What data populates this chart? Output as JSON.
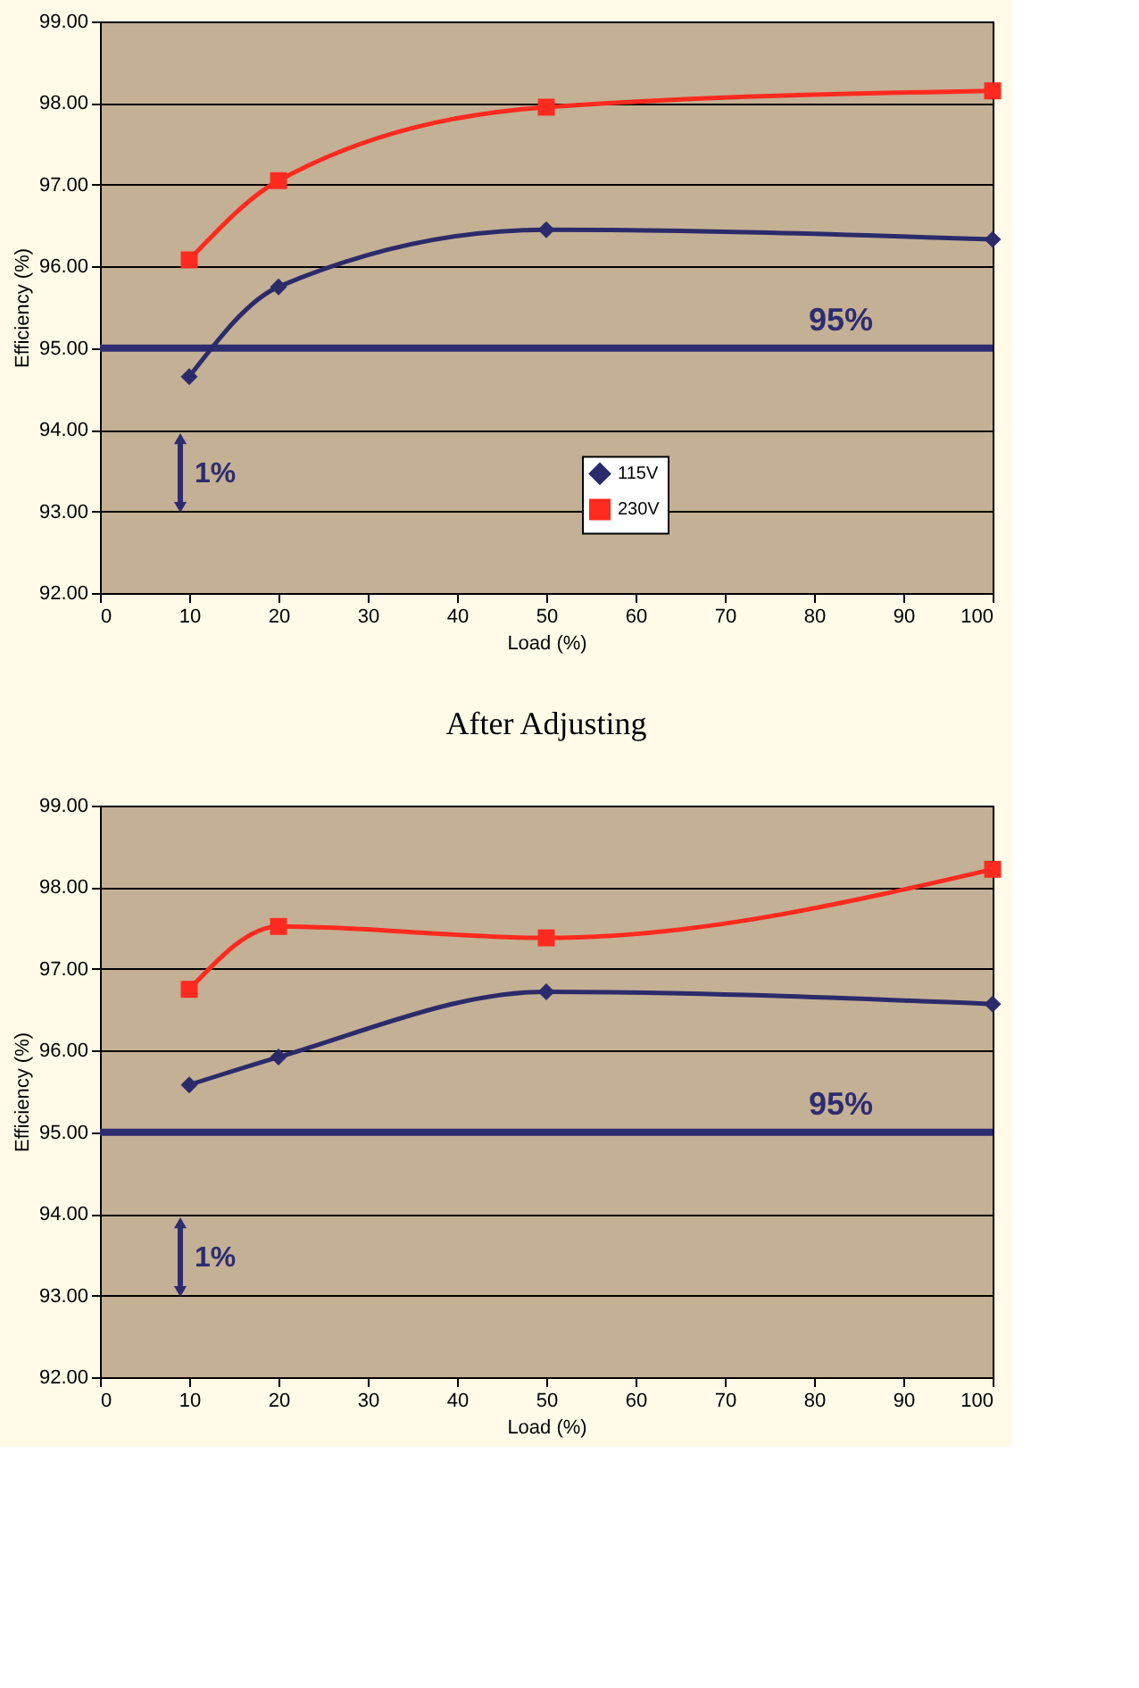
{
  "chart_data": [
    {
      "type": "line",
      "xlabel": "Load (%)",
      "ylabel": "Efficiency (%)",
      "x": [
        10,
        20,
        50,
        100
      ],
      "series": [
        {
          "name": "115V",
          "color": "#2b2a6b",
          "marker": "diamond",
          "values": [
            94.65,
            95.75,
            96.45,
            96.33
          ]
        },
        {
          "name": "230V",
          "color": "#ff2a1f",
          "marker": "square",
          "values": [
            96.08,
            97.05,
            97.95,
            98.15
          ]
        }
      ],
      "xlim": [
        0,
        100
      ],
      "xticks": [
        0,
        10,
        20,
        30,
        40,
        50,
        60,
        70,
        80,
        90,
        100
      ],
      "ylim": [
        92,
        99
      ],
      "yticks": [
        {
          "value": 92,
          "label": "92.00"
        },
        {
          "value": 93,
          "label": "93.00"
        },
        {
          "value": 94,
          "label": "94.00"
        },
        {
          "value": 95,
          "label": "95.00"
        },
        {
          "value": 96,
          "label": "96.00"
        },
        {
          "value": 97,
          "label": "97.00"
        },
        {
          "value": 98,
          "label": "98.00"
        },
        {
          "value": 99,
          "label": "99.00"
        }
      ],
      "grid": "y",
      "legend": "bottom",
      "ref_lines": [
        {
          "axis": "y",
          "value": 95,
          "label": "95%",
          "color": "#2e2c70"
        }
      ],
      "annotations": [
        "1%"
      ]
    },
    {
      "type": "line",
      "xlabel": "Load (%)",
      "ylabel": "Efficiency (%)",
      "x": [
        10,
        20,
        50,
        100
      ],
      "series": [
        {
          "name": "115V",
          "color": "#2b2a6b",
          "marker": "diamond",
          "values": [
            95.58,
            95.92,
            96.72,
            96.57
          ]
        },
        {
          "name": "230V",
          "color": "#ff2a1f",
          "marker": "square",
          "values": [
            96.75,
            97.52,
            97.38,
            98.22
          ]
        }
      ],
      "xlim": [
        0,
        100
      ],
      "xticks": [
        0,
        10,
        20,
        30,
        40,
        50,
        60,
        70,
        80,
        90,
        100
      ],
      "ylim": [
        92,
        99
      ],
      "yticks": [
        {
          "value": 92,
          "label": "92.00"
        },
        {
          "value": 93,
          "label": "93.00"
        },
        {
          "value": 94,
          "label": "94.00"
        },
        {
          "value": 95,
          "label": "95.00"
        },
        {
          "value": 96,
          "label": "96.00"
        },
        {
          "value": 97,
          "label": "97.00"
        },
        {
          "value": 98,
          "label": "98.00"
        },
        {
          "value": 99,
          "label": "99.00"
        }
      ],
      "grid": "y",
      "legend": "bottom",
      "ref_lines": [
        {
          "axis": "y",
          "value": 95,
          "label": "95%",
          "color": "#2e2c70"
        }
      ],
      "annotations": [
        "After Adjusting",
        "1%"
      ]
    }
  ]
}
